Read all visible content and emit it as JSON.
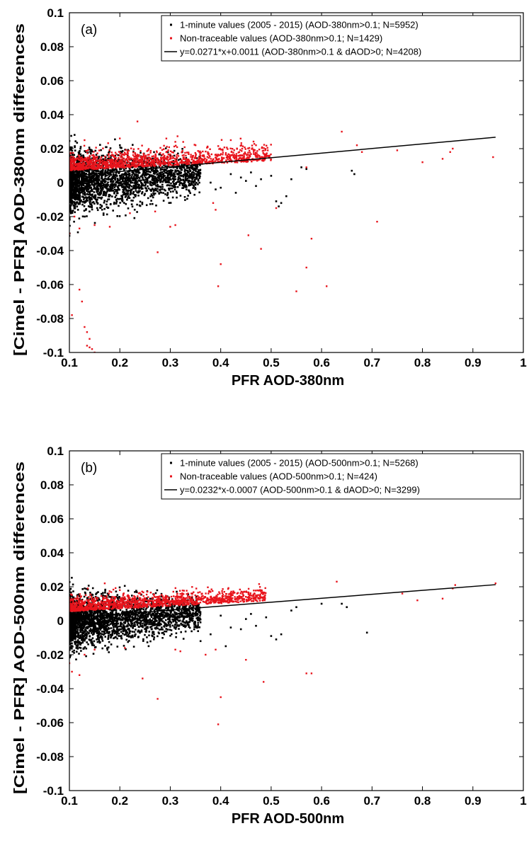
{
  "figure": {
    "colors": {
      "black_series": "#000000",
      "red_series": "#e8141c",
      "axes": "#000000"
    }
  },
  "chart_data": [
    {
      "type": "scatter",
      "panel_label": "(a)",
      "xlabel": "PFR AOD-380nm",
      "ylabel": "[Cimel - PFR]  AOD-380nm differences",
      "xlim": [
        0.1,
        1
      ],
      "ylim": [
        -0.1,
        0.1
      ],
      "x_ticks": [
        "0.1",
        "0.2",
        "0.3",
        "0.4",
        "0.5",
        "0.6",
        "0.7",
        "0.8",
        "0.9",
        "1"
      ],
      "y_ticks": [
        "0.1",
        "0.08",
        "0.06",
        "0.04",
        "0.02",
        "0",
        "-0.02",
        "-0.04",
        "-0.06",
        "-0.08",
        "-0.1"
      ],
      "grid": false,
      "legend_position": "top-right",
      "series": [
        {
          "name": "1-minute values (2005 - 2015) (AOD-380nm>0.1; N=5952)",
          "color": "#000000",
          "marker": "dot",
          "cloud": {
            "x_range": [
              0.1,
              0.36
            ],
            "y_center_intercept": 0.0,
            "y_slope": 0.018,
            "y_spread": 0.009
          },
          "points": [
            [
              0.42,
              0.005
            ],
            [
              0.45,
              0.001
            ],
            [
              0.47,
              -0.002
            ],
            [
              0.48,
              0.002
            ],
            [
              0.5,
              0.004
            ],
            [
              0.51,
              -0.011
            ],
            [
              0.515,
              -0.014
            ],
            [
              0.52,
              -0.012
            ],
            [
              0.53,
              -0.008
            ],
            [
              0.54,
              0.002
            ],
            [
              0.56,
              0.009
            ],
            [
              0.57,
              0.008
            ],
            [
              0.66,
              0.007
            ],
            [
              0.665,
              0.005
            ],
            [
              0.4,
              -0.003
            ],
            [
              0.43,
              -0.006
            ],
            [
              0.44,
              0.003
            ],
            [
              0.46,
              0.006
            ],
            [
              0.38,
              0.0
            ],
            [
              0.39,
              -0.004
            ]
          ]
        },
        {
          "name": "Non-traceable values (AOD-380nm>0.1; N=1429)",
          "color": "#e8141c",
          "marker": "dot",
          "band": {
            "x_range": [
              0.1,
              0.5
            ],
            "y_intercept": 0.0085,
            "y_slope": 0.014,
            "y_spread": 0.005
          },
          "points": [
            [
              0.235,
              0.036
            ],
            [
              0.13,
              0.025
            ],
            [
              0.2,
              0.026
            ],
            [
              0.31,
              0.024
            ],
            [
              0.35,
              0.022
            ],
            [
              0.42,
              0.025
            ],
            [
              0.47,
              0.022
            ],
            [
              0.64,
              0.03
            ],
            [
              0.67,
              0.022
            ],
            [
              0.68,
              0.018
            ],
            [
              0.75,
              0.019
            ],
            [
              0.8,
              0.012
            ],
            [
              0.84,
              0.014
            ],
            [
              0.855,
              0.018
            ],
            [
              0.86,
              0.02
            ],
            [
              0.94,
              0.015
            ],
            [
              0.57,
              0.009
            ],
            [
              0.1,
              -0.03
            ],
            [
              0.11,
              -0.02
            ],
            [
              0.12,
              -0.027
            ],
            [
              0.15,
              -0.025
            ],
            [
              0.18,
              -0.026
            ],
            [
              0.22,
              -0.018
            ],
            [
              0.27,
              -0.017
            ],
            [
              0.3,
              -0.026
            ],
            [
              0.31,
              -0.025
            ],
            [
              0.275,
              -0.041
            ],
            [
              0.385,
              -0.012
            ],
            [
              0.39,
              -0.016
            ],
            [
              0.455,
              -0.031
            ],
            [
              0.48,
              -0.039
            ],
            [
              0.51,
              -0.015
            ],
            [
              0.58,
              -0.033
            ],
            [
              0.4,
              -0.048
            ],
            [
              0.395,
              -0.061
            ],
            [
              0.57,
              -0.05
            ],
            [
              0.55,
              -0.064
            ],
            [
              0.61,
              -0.061
            ],
            [
              0.71,
              -0.023
            ],
            [
              0.105,
              -0.078
            ],
            [
              0.12,
              -0.063
            ],
            [
              0.125,
              -0.07
            ],
            [
              0.13,
              -0.085
            ],
            [
              0.135,
              -0.088
            ],
            [
              0.14,
              -0.092
            ],
            [
              0.145,
              -0.098
            ],
            [
              0.15,
              -0.1
            ],
            [
              0.14,
              -0.097
            ],
            [
              0.135,
              -0.096
            ]
          ]
        },
        {
          "name": "y=0.0271*x+0.0011 (AOD-380nm>0.1 & dAOD>0; N=4208)",
          "type": "line",
          "color": "#000000",
          "slope": 0.0271,
          "intercept": 0.0011,
          "x_range": [
            0.1,
            0.945
          ]
        }
      ]
    },
    {
      "type": "scatter",
      "panel_label": "(b)",
      "xlabel": "PFR AOD-500nm",
      "ylabel": "[Cimel - PFR]  AOD-500nm differences",
      "xlim": [
        0.1,
        1
      ],
      "ylim": [
        -0.1,
        0.1
      ],
      "x_ticks": [
        "0.1",
        "0.2",
        "0.3",
        "0.4",
        "0.5",
        "0.6",
        "0.7",
        "0.8",
        "0.9",
        "1"
      ],
      "y_ticks": [
        "0.1",
        "0.08",
        "0.06",
        "0.04",
        "0.02",
        "0",
        "-0.02",
        "-0.04",
        "-0.06",
        "-0.08",
        "-0.1"
      ],
      "grid": false,
      "legend_position": "top-right",
      "series": [
        {
          "name": "1-minute values (2005 - 2015) (AOD-500nm>0.1; N=5268)",
          "color": "#000000",
          "marker": "dot",
          "cloud": {
            "x_range": [
              0.1,
              0.36
            ],
            "y_center_intercept": -0.001,
            "y_slope": 0.02,
            "y_spread": 0.008
          },
          "points": [
            [
              0.4,
              0.003
            ],
            [
              0.42,
              -0.004
            ],
            [
              0.45,
              0.001
            ],
            [
              0.47,
              -0.003
            ],
            [
              0.49,
              0.002
            ],
            [
              0.5,
              -0.009
            ],
            [
              0.51,
              -0.011
            ],
            [
              0.52,
              -0.008
            ],
            [
              0.54,
              0.006
            ],
            [
              0.55,
              0.008
            ],
            [
              0.6,
              0.01
            ],
            [
              0.64,
              0.01
            ],
            [
              0.65,
              0.008
            ],
            [
              0.69,
              -0.007
            ],
            [
              0.38,
              -0.008
            ],
            [
              0.36,
              -0.012
            ],
            [
              0.41,
              -0.015
            ],
            [
              0.44,
              -0.005
            ],
            [
              0.46,
              0.004
            ]
          ]
        },
        {
          "name": "Non-traceable values (AOD-500nm>0.1; N=424)",
          "color": "#e8141c",
          "marker": "dot",
          "band": {
            "x_range": [
              0.1,
              0.49
            ],
            "y_intercept": 0.0065,
            "y_slope": 0.016,
            "y_spread": 0.004
          },
          "points": [
            [
              0.17,
              0.022
            ],
            [
              0.2,
              0.018
            ],
            [
              0.63,
              0.023
            ],
            [
              0.76,
              0.016
            ],
            [
              0.79,
              0.012
            ],
            [
              0.84,
              0.013
            ],
            [
              0.86,
              0.019
            ],
            [
              0.865,
              0.021
            ],
            [
              0.945,
              0.022
            ],
            [
              0.1,
              -0.025
            ],
            [
              0.105,
              -0.03
            ],
            [
              0.12,
              -0.032
            ],
            [
              0.13,
              -0.02
            ],
            [
              0.15,
              -0.017
            ],
            [
              0.21,
              -0.016
            ],
            [
              0.245,
              -0.034
            ],
            [
              0.275,
              -0.046
            ],
            [
              0.31,
              -0.017
            ],
            [
              0.32,
              -0.018
            ],
            [
              0.37,
              -0.02
            ],
            [
              0.39,
              -0.017
            ],
            [
              0.395,
              -0.061
            ],
            [
              0.4,
              -0.045
            ],
            [
              0.45,
              -0.023
            ],
            [
              0.485,
              -0.036
            ],
            [
              0.57,
              -0.031
            ],
            [
              0.58,
              -0.031
            ]
          ]
        },
        {
          "name": "y=0.0232*x-0.0007 (AOD-500nm>0.1 & dAOD>0; N=3299)",
          "type": "line",
          "color": "#000000",
          "slope": 0.0232,
          "intercept": -0.0007,
          "x_range": [
            0.1,
            0.945
          ]
        }
      ]
    }
  ]
}
